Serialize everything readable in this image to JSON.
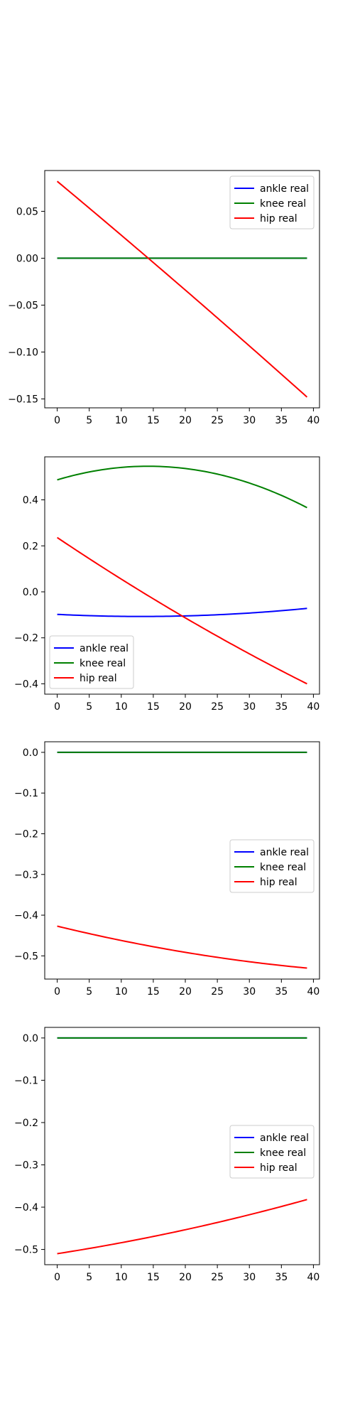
{
  "chart_data": [
    {
      "type": "line",
      "xlim": [
        -1.95,
        40.95
      ],
      "ylim": [
        -0.1595,
        0.0935
      ],
      "xticks": [
        0,
        5,
        10,
        15,
        20,
        25,
        30,
        35,
        40
      ],
      "yticks": [
        0.05,
        0.0,
        -0.05,
        -0.1,
        -0.15
      ],
      "ytick_labels": [
        "0.05",
        "0.00",
        "−0.05",
        "−0.10",
        "−0.15"
      ],
      "legend_loc": "upper right",
      "series": [
        {
          "name": "ankle real",
          "color": "#0000ff",
          "x_start": 0,
          "x_end": 39,
          "curve": "quadratic",
          "y": [
            0.0,
            0.0,
            0.0
          ]
        },
        {
          "name": "knee real",
          "color": "#008000",
          "x_start": 0,
          "x_end": 39,
          "curve": "quadratic",
          "y": [
            0.0,
            0.0,
            0.0
          ]
        },
        {
          "name": "hip real",
          "color": "#ff0000",
          "x_start": 0,
          "x_end": 39,
          "curve": "quadratic",
          "y": [
            0.082,
            -0.031,
            -0.148
          ]
        }
      ]
    },
    {
      "type": "line",
      "xlim": [
        -1.95,
        40.95
      ],
      "ylim": [
        -0.445,
        0.587
      ],
      "xticks": [
        0,
        5,
        10,
        15,
        20,
        25,
        30,
        35,
        40
      ],
      "yticks": [
        0.4,
        0.2,
        0.0,
        -0.2,
        -0.4
      ],
      "ytick_labels": [
        "0.4",
        "0.2",
        "0.0",
        "−0.2",
        "−0.4"
      ],
      "legend_loc": "lower left",
      "series": [
        {
          "name": "ankle real",
          "color": "#0000ff",
          "x_start": 0,
          "x_end": 39,
          "curve": "quadratic",
          "y": [
            -0.098,
            -0.105,
            -0.072
          ]
        },
        {
          "name": "knee real",
          "color": "#008000",
          "x_start": 0,
          "x_end": 39,
          "curve": "quadratic",
          "y": [
            0.487,
            0.538,
            0.366
          ]
        },
        {
          "name": "hip real",
          "color": "#ff0000",
          "x_start": 0,
          "x_end": 39,
          "curve": "quadratic",
          "y": [
            0.236,
            -0.105,
            -0.4
          ]
        }
      ]
    },
    {
      "type": "line",
      "xlim": [
        -1.95,
        40.95
      ],
      "ylim": [
        -0.557,
        0.026
      ],
      "xticks": [
        0,
        5,
        10,
        15,
        20,
        25,
        30,
        35,
        40
      ],
      "yticks": [
        0.0,
        -0.1,
        -0.2,
        -0.3,
        -0.4,
        -0.5
      ],
      "ytick_labels": [
        "0.0",
        "−0.1",
        "−0.2",
        "−0.3",
        "−0.4",
        "−0.5"
      ],
      "legend_loc": "center right",
      "series": [
        {
          "name": "ankle real",
          "color": "#0000ff",
          "x_start": 0,
          "x_end": 39,
          "curve": "quadratic",
          "y": [
            0.0,
            0.0,
            0.0
          ]
        },
        {
          "name": "knee real",
          "color": "#008000",
          "x_start": 0,
          "x_end": 39,
          "curve": "quadratic",
          "y": [
            0.0,
            0.0,
            0.0
          ]
        },
        {
          "name": "hip real",
          "color": "#ff0000",
          "x_start": 0,
          "x_end": 39,
          "curve": "quadratic",
          "y": [
            -0.427,
            -0.49,
            -0.53
          ]
        }
      ]
    },
    {
      "type": "line",
      "xlim": [
        -1.95,
        40.95
      ],
      "ylim": [
        -0.536,
        0.025
      ],
      "xticks": [
        0,
        5,
        10,
        15,
        20,
        25,
        30,
        35,
        40
      ],
      "yticks": [
        0.0,
        -0.1,
        -0.2,
        -0.3,
        -0.4,
        -0.5
      ],
      "ytick_labels": [
        "0.0",
        "−0.1",
        "−0.2",
        "−0.3",
        "−0.4",
        "−0.5"
      ],
      "legend_loc": "center right",
      "series": [
        {
          "name": "ankle real",
          "color": "#0000ff",
          "x_start": 0,
          "x_end": 39,
          "curve": "quadratic",
          "y": [
            0.0,
            0.0,
            0.0
          ]
        },
        {
          "name": "knee real",
          "color": "#008000",
          "x_start": 0,
          "x_end": 39,
          "curve": "quadratic",
          "y": [
            0.0,
            0.0,
            0.0
          ]
        },
        {
          "name": "hip real",
          "color": "#ff0000",
          "x_start": 0,
          "x_end": 39,
          "curve": "quadratic",
          "y": [
            -0.51,
            -0.455,
            -0.382
          ]
        }
      ]
    }
  ]
}
